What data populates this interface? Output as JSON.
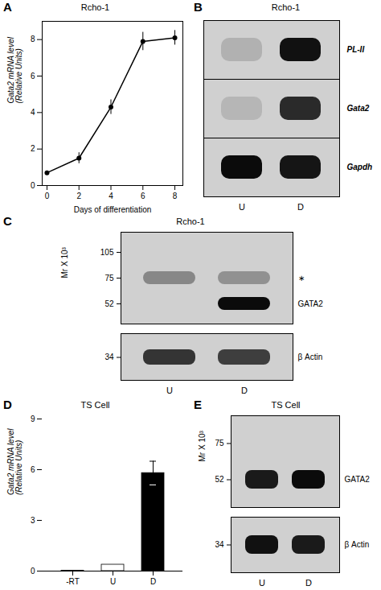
{
  "chart_data": [
    {
      "type": "line",
      "label": "A",
      "title": "Rcho-1",
      "x": [
        0,
        2,
        4,
        6,
        8
      ],
      "values": [
        0.7,
        1.5,
        4.3,
        7.9,
        8.1
      ],
      "yerr": [
        0.1,
        0.3,
        0.4,
        0.5,
        0.4
      ],
      "xlabel": "Days of differentiation",
      "ylabel": "Gata2 mRNA level\n(Relative Units)",
      "xlim": [
        -0.3,
        8.5
      ],
      "ylim": [
        0,
        9
      ],
      "xticks": [
        0,
        2,
        4,
        6,
        8
      ],
      "yticks": [
        0,
        2,
        4,
        6,
        8
      ],
      "marker": "circle"
    },
    {
      "type": "gel",
      "label": "B",
      "title": "Rcho-1",
      "lane_labels": [
        "U",
        "D"
      ],
      "rows": [
        "PL-II",
        "Gata2",
        "Gapdh"
      ],
      "bands": [
        {
          "lane": "U",
          "gene": "PL-II",
          "intensity": 0.15
        },
        {
          "lane": "D",
          "gene": "PL-II",
          "intensity": 0.92
        },
        {
          "lane": "U",
          "gene": "Gata2",
          "intensity": 0.12
        },
        {
          "lane": "D",
          "gene": "Gata2",
          "intensity": 0.8
        },
        {
          "lane": "U",
          "gene": "Gapdh",
          "intensity": 0.95
        },
        {
          "lane": "D",
          "gene": "Gapdh",
          "intensity": 0.9
        }
      ]
    },
    {
      "type": "gel",
      "label": "C",
      "title": "Rcho-1",
      "ylabel": "Mr X 10³",
      "lane_labels": [
        "U",
        "D"
      ],
      "blots": [
        {
          "mw": [
            105,
            75,
            52
          ],
          "bands": [
            {
              "lane": "U",
              "mw": 75,
              "intensity": 0.35
            },
            {
              "lane": "D",
              "mw": 75,
              "intensity": 0.3
            },
            {
              "lane": "D",
              "mw": 52,
              "intensity": 0.95
            }
          ],
          "band_labels": [
            {
              "mw": 75,
              "label": "∗"
            },
            {
              "mw": 52,
              "label": "GATA2"
            }
          ]
        },
        {
          "mw": [
            34
          ],
          "bands": [
            {
              "lane": "U",
              "mw": 34,
              "intensity": 0.75
            },
            {
              "lane": "D",
              "mw": 34,
              "intensity": 0.7
            }
          ],
          "band_labels": [
            {
              "mw": 34,
              "label": "β Actin"
            }
          ]
        }
      ]
    },
    {
      "type": "bar",
      "label": "D",
      "title": "TS Cell",
      "categories": [
        "-RT",
        "U",
        "D"
      ],
      "values": [
        0.02,
        0.38,
        5.8
      ],
      "yerr": [
        0.0,
        0.0,
        0.7
      ],
      "colors": [
        "white",
        "white",
        "black"
      ],
      "ylabel": "Gata2 mRNA level\n(Relative Units)",
      "ylim": [
        0,
        9
      ],
      "yticks": [
        0,
        3,
        6,
        9
      ]
    },
    {
      "type": "gel",
      "label": "E",
      "title": "TS Cell",
      "ylabel": "Mr X 10³",
      "lane_labels": [
        "U",
        "D"
      ],
      "blots": [
        {
          "mw": [
            75,
            52
          ],
          "bands": [
            {
              "lane": "U",
              "mw": 52,
              "intensity": 0.88
            },
            {
              "lane": "D",
              "mw": 52,
              "intensity": 0.95
            }
          ],
          "band_labels": [
            {
              "mw": 52,
              "label": "GATA2"
            }
          ]
        },
        {
          "mw": [
            34
          ],
          "bands": [
            {
              "lane": "U",
              "mw": 34,
              "intensity": 0.92
            },
            {
              "lane": "D",
              "mw": 34,
              "intensity": 0.88
            }
          ],
          "band_labels": [
            {
              "mw": 34,
              "label": "β Actin"
            }
          ]
        }
      ]
    }
  ]
}
